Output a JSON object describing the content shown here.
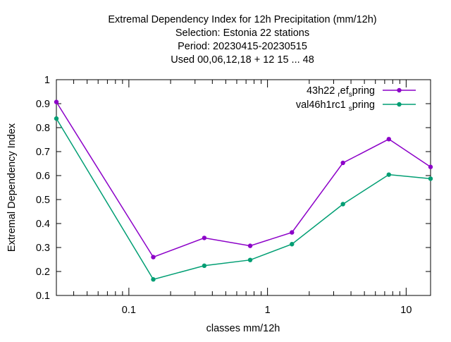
{
  "chart_data": {
    "type": "line",
    "title_lines": [
      "Extremal Dependency Index  for 12h Precipitation (mm/12h)",
      "Selection: Estonia     22 stations",
      "Period: 20230415-20230515",
      "Used  00,06,12,18  + 12 15 ... 48"
    ],
    "xlabel": "classes mm/12h",
    "ylabel": "Extremal Dependency Index",
    "x_scale": "log",
    "xlim": [
      0.03,
      15
    ],
    "ylim": [
      0.1,
      1.0
    ],
    "x_ticks": [
      {
        "value": 0.1,
        "label": "0.1"
      },
      {
        "value": 1,
        "label": "1"
      },
      {
        "value": 10,
        "label": "10"
      }
    ],
    "y_ticks": [
      {
        "value": 0.1,
        "label": "0.1"
      },
      {
        "value": 0.2,
        "label": "0.2"
      },
      {
        "value": 0.3,
        "label": "0.3"
      },
      {
        "value": 0.4,
        "label": "0.4"
      },
      {
        "value": 0.5,
        "label": "0.5"
      },
      {
        "value": 0.6,
        "label": "0.6"
      },
      {
        "value": 0.7,
        "label": "0.7"
      },
      {
        "value": 0.8,
        "label": "0.8"
      },
      {
        "value": 0.9,
        "label": "0.9"
      },
      {
        "value": 1.0,
        "label": "1"
      }
    ],
    "legend_position": "top-right",
    "grid": false,
    "x": [
      0.03,
      0.15,
      0.35,
      0.75,
      1.5,
      3.5,
      7.5,
      15
    ],
    "series": [
      {
        "name_main": "43h22",
        "name_sub1": "r",
        "name_mid": "ef",
        "name_sub2": "s",
        "name_end": "pring",
        "color": "#8c00c8",
        "values": [
          0.907,
          0.26,
          0.34,
          0.307,
          0.363,
          0.653,
          0.752,
          0.636
        ]
      },
      {
        "name_main": "val46h1rc1",
        "name_sub2": "s",
        "name_end": "pring",
        "color": "#009e73",
        "values": [
          0.838,
          0.167,
          0.224,
          0.248,
          0.314,
          0.481,
          0.604,
          0.587
        ]
      }
    ]
  }
}
